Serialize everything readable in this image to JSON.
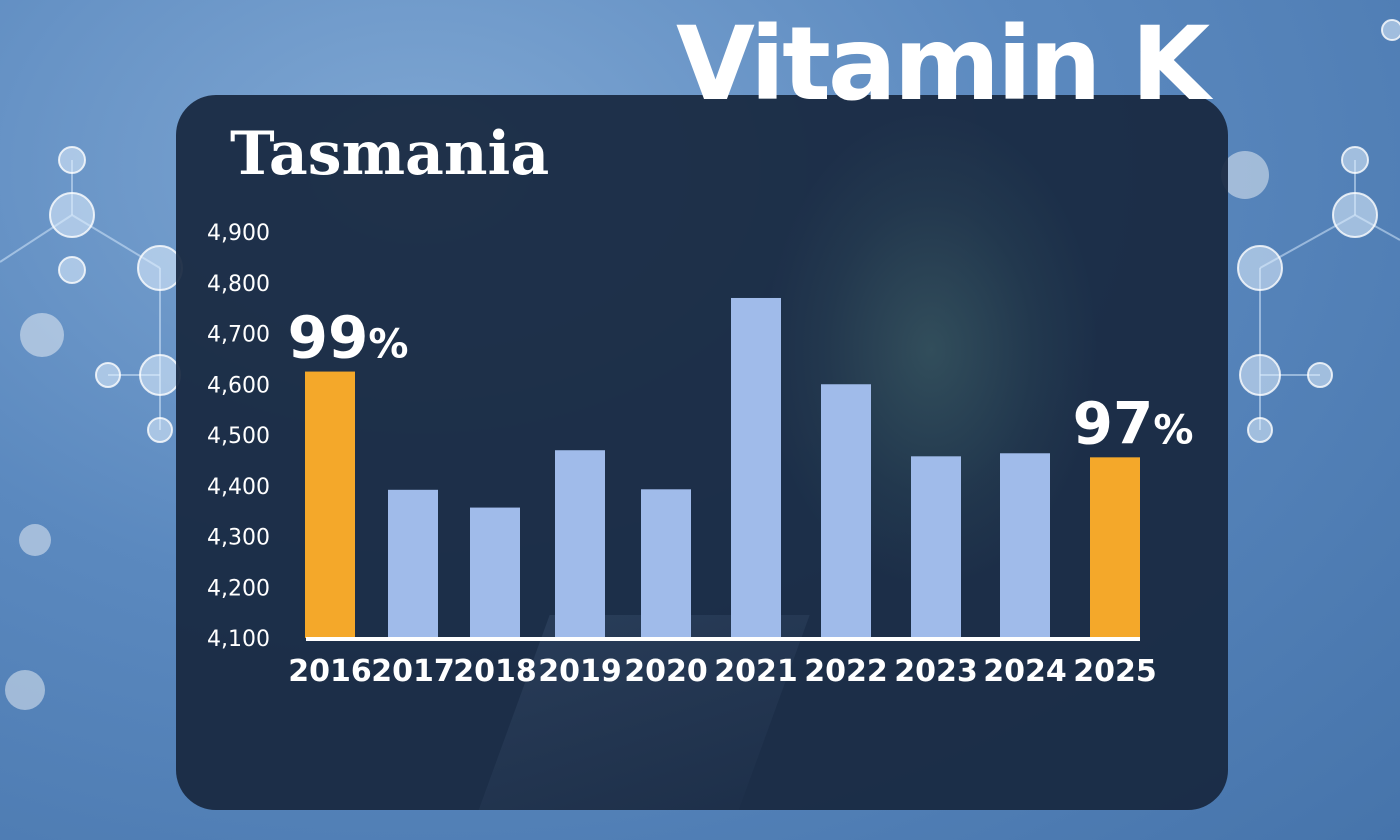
{
  "title": "Vitamin K",
  "region": "Tasmania",
  "colors": {
    "default_bar": "#a0bbea",
    "highlight_bar": "#f4a82a",
    "baseline": "#ffffff",
    "panel": "#182840"
  },
  "chart_data": {
    "type": "bar",
    "categories": [
      "2016",
      "2017",
      "2018",
      "2019",
      "2020",
      "2021",
      "2022",
      "2023",
      "2024",
      "2025"
    ],
    "values": [
      4625,
      4392,
      4357,
      4470,
      4393,
      4770,
      4600,
      4458,
      4464,
      4456
    ],
    "highlight": [
      true,
      false,
      false,
      false,
      false,
      false,
      false,
      false,
      false,
      true
    ],
    "ylim": [
      4100,
      4900
    ],
    "yticks": [
      "4,100",
      "4,200",
      "4,300",
      "4,400",
      "4,500",
      "4,600",
      "4,700",
      "4,800",
      "4,900"
    ],
    "grid": false,
    "annotations": [
      {
        "category": "2016",
        "text": "99%"
      },
      {
        "category": "2025",
        "text": "97%"
      }
    ]
  }
}
